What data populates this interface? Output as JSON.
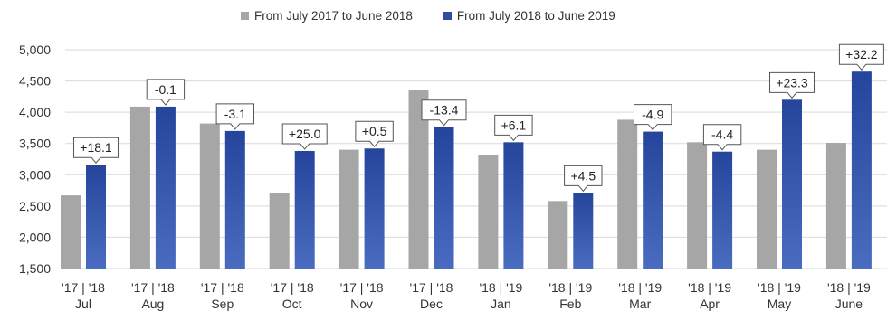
{
  "chart_data": {
    "type": "bar",
    "title": "",
    "xlabel": "",
    "ylabel": "",
    "ylim": [
      1500,
      5000
    ],
    "yticks": [
      "1,500",
      "2,000",
      "2,500",
      "3,000",
      "3,500",
      "4,000",
      "4,500",
      "5,000"
    ],
    "ytick_values": [
      1500,
      2000,
      2500,
      3000,
      3500,
      4000,
      4500,
      5000
    ],
    "grid": true,
    "legend_position": "top-center",
    "categories": [
      "Jul",
      "Aug",
      "Sep",
      "Oct",
      "Nov",
      "Dec",
      "Jan",
      "Feb",
      "Mar",
      "Apr",
      "May",
      "June"
    ],
    "year_labels": [
      "'17 | '18",
      "'17 | '18",
      "'17 | '18",
      "'17 | '18",
      "'17 | '18",
      "'17 | '18",
      "'18 | '19",
      "'18 | '19",
      "'18 | '19",
      "'18 | '19",
      "'18 | '19",
      "'18 | '19"
    ],
    "series": [
      {
        "name": "From July 2017 to June 2018",
        "color": "#a6a6a6",
        "values": [
          2670,
          4090,
          3820,
          2710,
          3400,
          4350,
          3310,
          2580,
          3880,
          3520,
          3400,
          3510
        ]
      },
      {
        "name": "From July 2018 to June 2019",
        "color": "#2f4e9e",
        "values": [
          3160,
          4090,
          3700,
          3380,
          3420,
          3760,
          3520,
          2710,
          3690,
          3370,
          4200,
          4650
        ]
      }
    ],
    "annotations": [
      "+18.1",
      "-0.1",
      "-3.1",
      "+25.0",
      "+0.5",
      "-13.4",
      "+6.1",
      "+4.5",
      "-4.9",
      "-4.4",
      "+23.3",
      "+32.2"
    ]
  },
  "colors": {
    "grid": "#d9d9d9",
    "axis_text": "#333333",
    "callout_border": "#555555"
  }
}
